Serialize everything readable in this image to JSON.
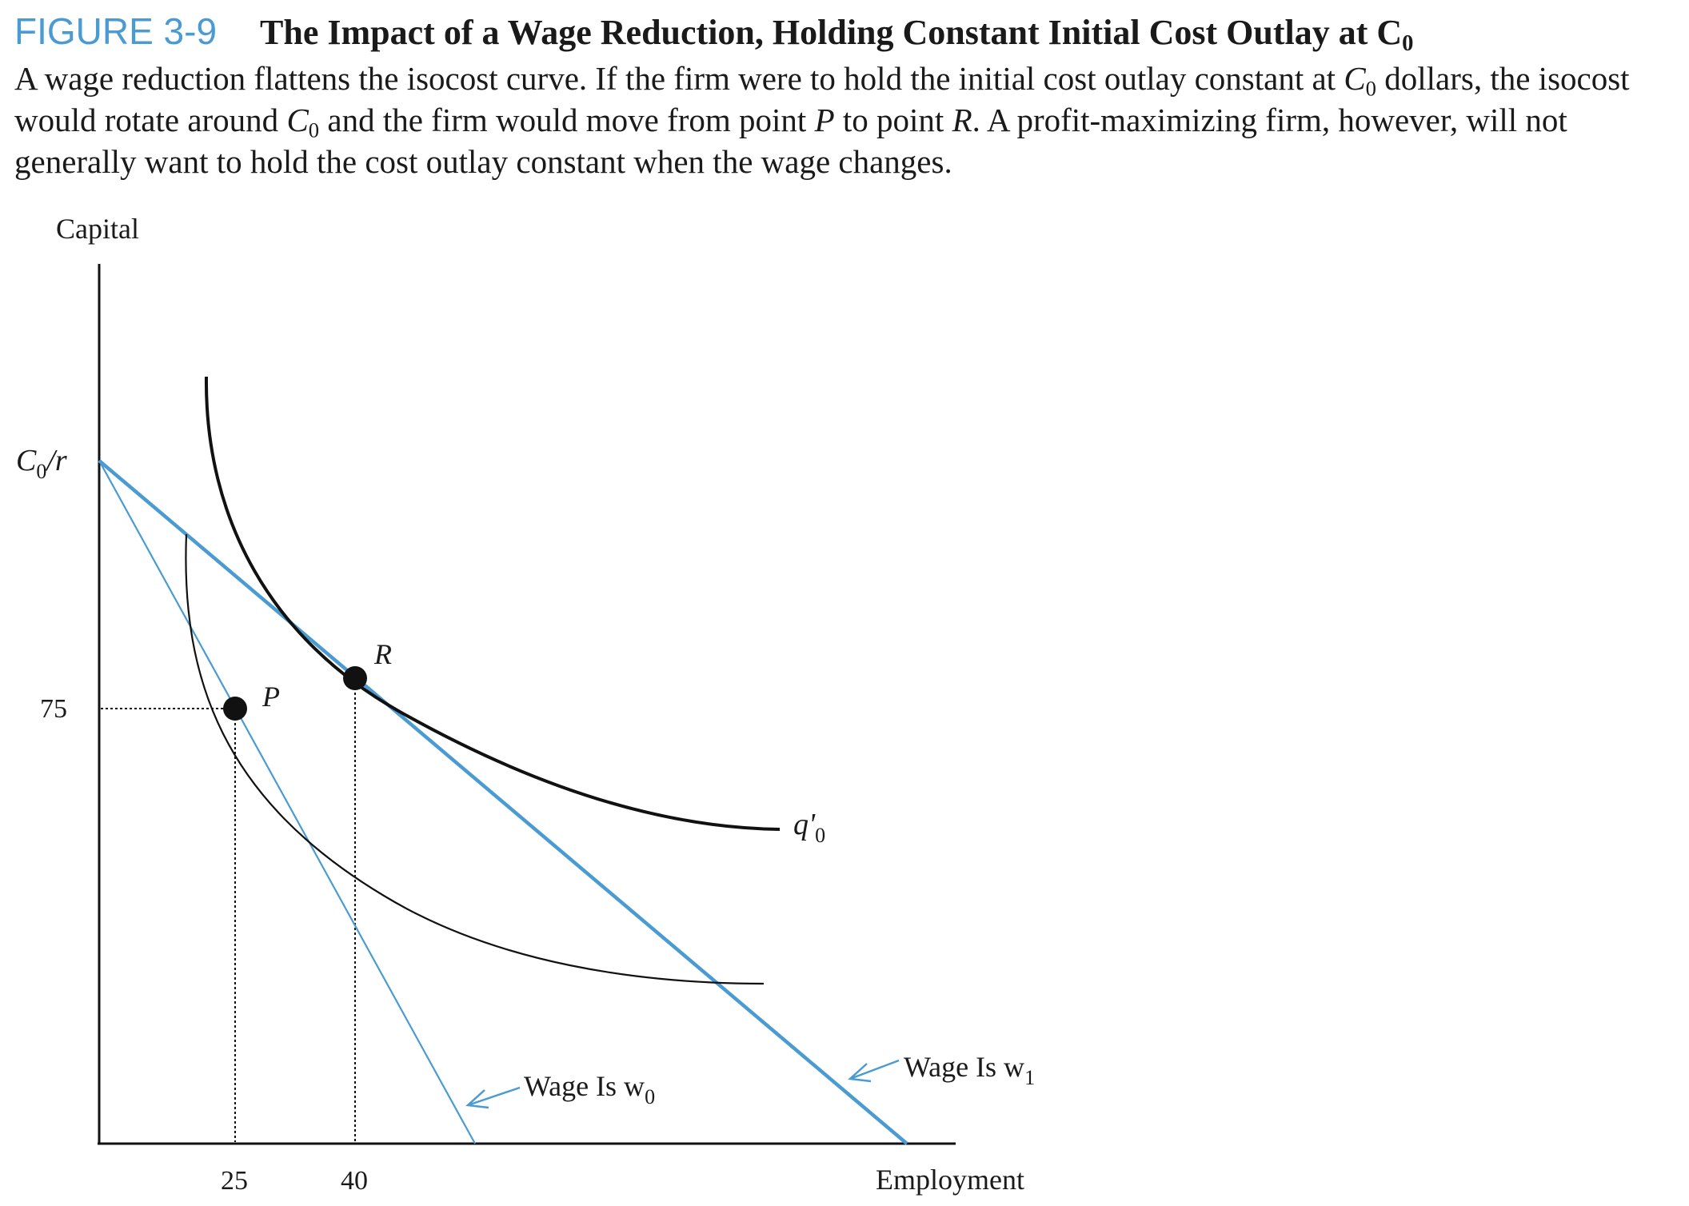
{
  "figure": {
    "label": "FIGURE 3-9",
    "title": "The Impact of a Wage Reduction, Holding Constant Initial Cost Outlay at C",
    "title_sub": "0",
    "caption": {
      "p1": "A wage reduction flattens the isocost curve. If the firm were to hold the initial cost outlay constant at ",
      "c": "C",
      "sub": "0",
      "p2": " dollars, the isocost would rotate around ",
      "p3": " and the firm would move from point ",
      "P": "P",
      "p4": " to point ",
      "R": "R",
      "p5": ". A profit-maximizing firm, however, will not generally want to hold the cost outlay constant when the wage changes."
    }
  },
  "diagram": {
    "y_axis_label": "Capital",
    "x_axis_label": "Employment",
    "y_intercept_label": "C",
    "y_intercept_sub": "0",
    "y_intercept_suffix": "/r",
    "y_tick_75": "75",
    "x_tick_25": "25",
    "x_tick_40": "40",
    "point_p": "P",
    "point_r": "R",
    "isoquant_label": "q'",
    "isoquant_sub": "0",
    "wage_w0_label": "Wage Is w",
    "wage_w0_sub": "0",
    "wage_w1_label": "Wage Is w",
    "wage_w1_sub": "1",
    "colors": {
      "isocost": "#4a9bd2",
      "curve": "#111111",
      "accent": "#4a9bd2"
    }
  }
}
